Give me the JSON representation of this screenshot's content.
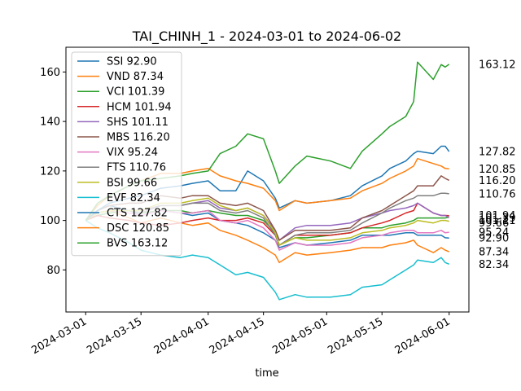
{
  "chart_data": {
    "type": "line",
    "title": "TAI_CHINH_1 - 2024-03-01 to 2024-06-02",
    "xlabel": "time",
    "ylabel": "",
    "xlim": [
      "2024-02-25",
      "2024-06-06"
    ],
    "ylim": [
      63,
      170
    ],
    "x_ticks": [
      "2024-03-01",
      "2024-03-15",
      "2024-04-01",
      "2024-04-15",
      "2024-05-01",
      "2024-05-15",
      "2024-06-01"
    ],
    "y_ticks": [
      80,
      100,
      120,
      140,
      160
    ],
    "grid": false,
    "legend_position": "top-left",
    "x": [
      "2024-03-01",
      "2024-03-04",
      "2024-03-07",
      "2024-03-12",
      "2024-03-15",
      "2024-03-20",
      "2024-03-25",
      "2024-03-28",
      "2024-04-01",
      "2024-04-04",
      "2024-04-08",
      "2024-04-11",
      "2024-04-15",
      "2024-04-18",
      "2024-04-19",
      "2024-04-23",
      "2024-04-26",
      "2024-05-02",
      "2024-05-07",
      "2024-05-10",
      "2024-05-15",
      "2024-05-17",
      "2024-05-21",
      "2024-05-23",
      "2024-05-24",
      "2024-05-28",
      "2024-05-30",
      "2024-05-31",
      "2024-06-01"
    ],
    "series": [
      {
        "name": "SSI 92.90",
        "color": "#1f77b4",
        "values": [
          100,
          104,
          106,
          104,
          102,
          104,
          103,
          102,
          103,
          100,
          99,
          98,
          95,
          92,
          89,
          91,
          90,
          91,
          92,
          94,
          94,
          94,
          95,
          95,
          94,
          94,
          94,
          93,
          92.9
        ]
      },
      {
        "name": "VND 87.34",
        "color": "#ff7f0e",
        "values": [
          100,
          103,
          104,
          101,
          99,
          101,
          99,
          98,
          99,
          96,
          94,
          92,
          89,
          86,
          83,
          87,
          86,
          87,
          88,
          89,
          89,
          90,
          91,
          92,
          90,
          87,
          89,
          88,
          87.34
        ]
      },
      {
        "name": "VCI 101.39",
        "color": "#2ca02c",
        "values": [
          100,
          102,
          103,
          104,
          103,
          104,
          104,
          103,
          104,
          103,
          102,
          102,
          100,
          95,
          90,
          93,
          93,
          94,
          95,
          97,
          97,
          98,
          99,
          100,
          101,
          101,
          101,
          101,
          101.39
        ]
      },
      {
        "name": "HCM 101.94",
        "color": "#d62728",
        "values": [
          100,
          102,
          101,
          100,
          99,
          98,
          99,
          100,
          101,
          100,
          100,
          101,
          99,
          94,
          90,
          94,
          94,
          94,
          95,
          97,
          99,
          100,
          103,
          104,
          107,
          103,
          102,
          102,
          101.94
        ]
      },
      {
        "name": "SHS 101.11",
        "color": "#9467bd",
        "values": [
          100,
          103,
          104,
          104,
          104,
          106,
          106,
          107,
          108,
          105,
          104,
          105,
          102,
          96,
          92,
          97,
          98,
          98,
          99,
          101,
          103,
          104,
          105,
          106,
          107,
          103,
          102,
          102,
          101.11
        ]
      },
      {
        "name": "MBS 116.20",
        "color": "#8c564b",
        "values": [
          100,
          104,
          106,
          107,
          107,
          110,
          109,
          110,
          110,
          107,
          106,
          107,
          104,
          96,
          92,
          96,
          96,
          96,
          97,
          101,
          104,
          106,
          110,
          112,
          114,
          114,
          118,
          117,
          116.2
        ]
      },
      {
        "name": "VIX 95.24",
        "color": "#e377c2",
        "values": [
          100,
          103,
          104,
          103,
          102,
          104,
          103,
          103,
          104,
          100,
          99,
          100,
          97,
          92,
          88,
          91,
          90,
          90,
          91,
          93,
          94,
          95,
          96,
          96,
          95,
          95,
          96,
          95,
          95.24
        ]
      },
      {
        "name": "FTS 110.76",
        "color": "#7f7f7f",
        "values": [
          100,
          103,
          104,
          104,
          103,
          106,
          106,
          107,
          107,
          104,
          103,
          104,
          101,
          94,
          90,
          94,
          95,
          95,
          96,
          99,
          103,
          105,
          108,
          109,
          110,
          110,
          111,
          111,
          110.76
        ]
      },
      {
        "name": "BSI 99.66",
        "color": "#bcbd22",
        "values": [
          100,
          103,
          104,
          104,
          104,
          107,
          107,
          108,
          109,
          106,
          104,
          105,
          102,
          95,
          90,
          93,
          92,
          92,
          93,
          95,
          96,
          97,
          98,
          99,
          100,
          99,
          100,
          100,
          99.66
        ]
      },
      {
        "name": "EVF 82.34",
        "color": "#17becf",
        "values": [
          100,
          97,
          95,
          91,
          88,
          86,
          85,
          86,
          85,
          82,
          78,
          79,
          77,
          71,
          68,
          70,
          69,
          69,
          70,
          73,
          74,
          76,
          80,
          82,
          84,
          83,
          85,
          83,
          82.34
        ]
      },
      {
        "name": "CTS 127.82",
        "color": "#1f77b4",
        "values": [
          100,
          104,
          107,
          109,
          110,
          113,
          114,
          115,
          116,
          112,
          112,
          120,
          116,
          109,
          105,
          108,
          107,
          108,
          110,
          114,
          118,
          121,
          124,
          127,
          128,
          127,
          130,
          130,
          127.82
        ]
      },
      {
        "name": "DSC 120.85",
        "color": "#ff7f0e",
        "values": [
          100,
          106,
          110,
          114,
          116,
          119,
          119,
          120,
          121,
          118,
          116,
          115,
          113,
          108,
          104,
          108,
          107,
          108,
          109,
          112,
          115,
          117,
          120,
          122,
          125,
          123,
          122,
          121,
          120.85
        ]
      },
      {
        "name": "BVS 163.12",
        "color": "#2ca02c",
        "values": [
          100,
          107,
          110,
          114,
          116,
          117,
          118,
          119,
          120,
          127,
          130,
          135,
          133,
          120,
          115,
          122,
          126,
          124,
          121,
          128,
          135,
          138,
          142,
          148,
          164,
          157,
          163,
          162,
          163.12
        ]
      }
    ],
    "end_labels": [
      "163.12",
      "127.82",
      "120.85",
      "116.20",
      "110.76",
      "101.94",
      "101.39",
      "101.11",
      "99.66",
      "95.24",
      "92.90",
      "87.34",
      "82.34"
    ]
  }
}
